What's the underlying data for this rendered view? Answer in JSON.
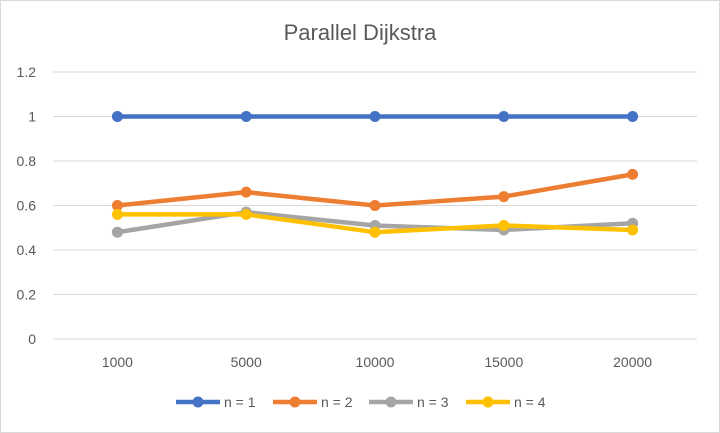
{
  "chart_data": {
    "type": "line",
    "title": "Parallel Dijkstra",
    "categories": [
      "1000",
      "5000",
      "10000",
      "15000",
      "20000"
    ],
    "yticks": [
      "0",
      "0.2",
      "0.4",
      "0.6",
      "0.8",
      "1",
      "1.2"
    ],
    "ylim": [
      0,
      1.2
    ],
    "grid": true,
    "legend_position": "bottom",
    "series": [
      {
        "name": "n = 1",
        "color": "#4472C4",
        "values": [
          1.0,
          1.0,
          1.0,
          1.0,
          1.0
        ]
      },
      {
        "name": "n = 2",
        "color": "#ED7D31",
        "values": [
          0.6,
          0.66,
          0.6,
          0.64,
          0.74
        ]
      },
      {
        "name": "n = 3",
        "color": "#A5A5A5",
        "values": [
          0.48,
          0.57,
          0.51,
          0.49,
          0.52
        ]
      },
      {
        "name": "n = 4",
        "color": "#FFC000",
        "values": [
          0.56,
          0.56,
          0.48,
          0.51,
          0.49
        ]
      }
    ]
  }
}
